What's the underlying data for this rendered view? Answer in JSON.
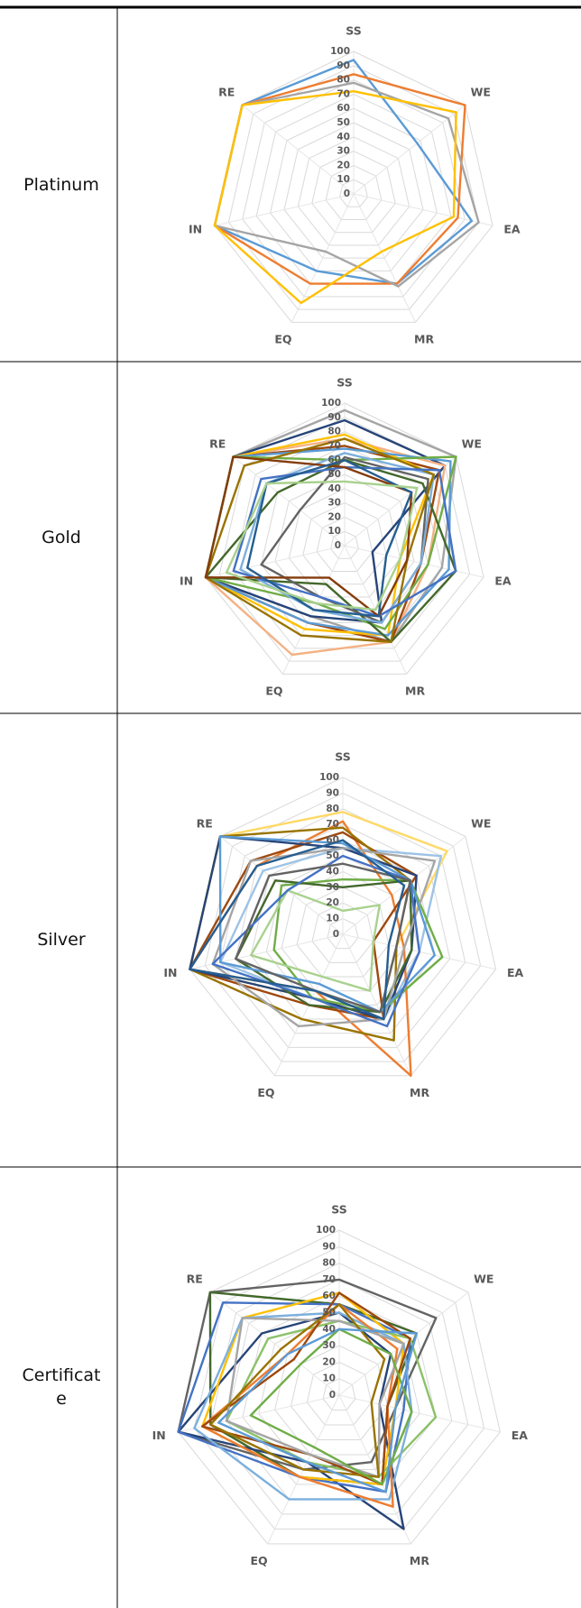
{
  "table": {
    "rows": [
      {
        "label": "Platinum"
      },
      {
        "label": "Gold"
      },
      {
        "label": "Silver"
      },
      {
        "label": "Certificate"
      }
    ]
  },
  "chart_data": [
    {
      "type": "radar",
      "categories": [
        "SS",
        "WE",
        "EA",
        "MR",
        "EQ",
        "IN",
        "RE"
      ],
      "ylim": [
        0,
        100
      ],
      "yticks": [
        0,
        10,
        20,
        30,
        40,
        50,
        60,
        70,
        80,
        90,
        100
      ],
      "grid": true,
      "series": [
        {
          "color": "#5B9BD5",
          "values": [
            94,
            57,
            85,
            70,
            60,
            100,
            100
          ]
        },
        {
          "color": "#ED7D31",
          "values": [
            84,
            100,
            75,
            70,
            70,
            100,
            100
          ]
        },
        {
          "color": "#A5A5A5",
          "values": [
            78,
            85,
            90,
            72,
            45,
            100,
            100
          ]
        },
        {
          "color": "#FFC000",
          "values": [
            72,
            92,
            72,
            45,
            85,
            100,
            100
          ]
        }
      ]
    },
    {
      "type": "radar",
      "categories": [
        "SS",
        "WE",
        "EA",
        "MR",
        "EQ",
        "IN",
        "RE"
      ],
      "ylim": [
        0,
        100
      ],
      "yticks": [
        0,
        10,
        20,
        30,
        40,
        50,
        60,
        70,
        80,
        90,
        100
      ],
      "grid": true,
      "series": [
        {
          "color": "#A5A5A5",
          "values": [
            95,
            100,
            70,
            75,
            55,
            100,
            100
          ]
        },
        {
          "color": "#264478",
          "values": [
            88,
            90,
            20,
            60,
            55,
            100,
            100
          ]
        },
        {
          "color": "#F4B183",
          "values": [
            75,
            90,
            60,
            75,
            85,
            100,
            100
          ]
        },
        {
          "color": "#9E480E",
          "values": [
            70,
            85,
            55,
            75,
            60,
            100,
            100
          ]
        },
        {
          "color": "#FFC000",
          "values": [
            78,
            80,
            40,
            70,
            65,
            100,
            100
          ]
        },
        {
          "color": "#5B9BD5",
          "values": [
            68,
            95,
            75,
            70,
            60,
            100,
            100
          ]
        },
        {
          "color": "#70AD47",
          "values": [
            60,
            100,
            60,
            65,
            45,
            100,
            100
          ]
        },
        {
          "color": "#43682B",
          "values": [
            60,
            70,
            80,
            75,
            30,
            100,
            60
          ]
        },
        {
          "color": "#636363",
          "values": [
            62,
            75,
            55,
            60,
            40,
            60,
            40
          ]
        },
        {
          "color": "#7CAFDD",
          "values": [
            65,
            80,
            55,
            60,
            50,
            75,
            70
          ]
        },
        {
          "color": "#997300",
          "values": [
            75,
            80,
            45,
            75,
            70,
            100,
            90
          ]
        },
        {
          "color": "#4472C4",
          "values": [
            55,
            85,
            80,
            55,
            40,
            80,
            75
          ]
        },
        {
          "color": "#843C0C",
          "values": [
            55,
            60,
            45,
            55,
            25,
            100,
            100
          ]
        },
        {
          "color": "#255E91",
          "values": [
            60,
            60,
            30,
            55,
            50,
            70,
            70
          ]
        },
        {
          "color": "#A9D18E",
          "values": [
            45,
            65,
            40,
            50,
            45,
            85,
            70
          ]
        }
      ]
    },
    {
      "type": "radar",
      "categories": [
        "SS",
        "WE",
        "EA",
        "MR",
        "EQ",
        "IN",
        "RE"
      ],
      "ylim": [
        0,
        100
      ],
      "yticks": [
        0,
        10,
        20,
        30,
        40,
        50,
        60,
        70,
        80,
        90,
        100
      ],
      "grid": true,
      "series": [
        {
          "color": "#FFD966",
          "values": [
            78,
            85,
            35,
            55,
            45,
            100,
            100
          ]
        },
        {
          "color": "#9DC3E6",
          "values": [
            55,
            80,
            50,
            60,
            45,
            80,
            65
          ]
        },
        {
          "color": "#ED7D31",
          "values": [
            72,
            40,
            40,
            100,
            40,
            100,
            70
          ]
        },
        {
          "color": "#9E480E",
          "values": [
            65,
            60,
            20,
            60,
            50,
            100,
            75
          ]
        },
        {
          "color": "#997300",
          "values": [
            68,
            55,
            35,
            75,
            60,
            100,
            100
          ]
        },
        {
          "color": "#264478",
          "values": [
            55,
            60,
            45,
            60,
            45,
            100,
            100
          ]
        },
        {
          "color": "#70AD47",
          "values": [
            35,
            55,
            65,
            55,
            45,
            45,
            50
          ]
        },
        {
          "color": "#A9D18E",
          "values": [
            15,
            30,
            20,
            40,
            30,
            60,
            45
          ]
        },
        {
          "color": "#43682B",
          "values": [
            30,
            55,
            45,
            55,
            50,
            70,
            55
          ]
        },
        {
          "color": "#A5A5A5",
          "values": [
            55,
            75,
            40,
            60,
            65,
            85,
            75
          ]
        },
        {
          "color": "#5B9BD5",
          "values": [
            58,
            55,
            60,
            55,
            35,
            80,
            100
          ]
        },
        {
          "color": "#4472C4",
          "values": [
            50,
            55,
            50,
            65,
            45,
            85,
            45
          ]
        },
        {
          "color": "#636363",
          "values": [
            45,
            55,
            35,
            55,
            40,
            70,
            60
          ]
        },
        {
          "color": "#255E91",
          "values": [
            60,
            50,
            30,
            60,
            40,
            100,
            70
          ]
        }
      ]
    },
    {
      "type": "radar",
      "categories": [
        "SS",
        "WE",
        "EA",
        "MR",
        "EQ",
        "IN",
        "RE"
      ],
      "ylim": [
        0,
        100
      ],
      "yticks": [
        0,
        10,
        20,
        30,
        40,
        50,
        60,
        70,
        80,
        90,
        100
      ],
      "grid": true,
      "series": [
        {
          "color": "#636363",
          "values": [
            70,
            75,
            35,
            45,
            50,
            100,
            100
          ]
        },
        {
          "color": "#43682B",
          "values": [
            55,
            60,
            30,
            60,
            55,
            80,
            100
          ]
        },
        {
          "color": "#264478",
          "values": [
            50,
            40,
            25,
            90,
            45,
            100,
            60
          ]
        },
        {
          "color": "#4472C4",
          "values": [
            55,
            55,
            40,
            65,
            55,
            100,
            90
          ]
        },
        {
          "color": "#FFC000",
          "values": [
            62,
            50,
            35,
            60,
            55,
            85,
            75
          ]
        },
        {
          "color": "#8CC168",
          "values": [
            45,
            55,
            60,
            55,
            45,
            70,
            55
          ]
        },
        {
          "color": "#7CAFDD",
          "values": [
            50,
            50,
            45,
            70,
            70,
            90,
            75
          ]
        },
        {
          "color": "#ED7D31",
          "values": [
            55,
            45,
            30,
            75,
            55,
            85,
            40
          ]
        },
        {
          "color": "#9E480E",
          "values": [
            62,
            55,
            30,
            60,
            40,
            85,
            35
          ]
        },
        {
          "color": "#A5A5A5",
          "values": [
            45,
            50,
            25,
            55,
            40,
            70,
            75
          ]
        },
        {
          "color": "#997300",
          "values": [
            55,
            35,
            20,
            55,
            50,
            80,
            45
          ]
        },
        {
          "color": "#70AD47",
          "values": [
            40,
            40,
            45,
            60,
            35,
            55,
            30
          ]
        },
        {
          "color": "#5B9BD5",
          "values": [
            40,
            60,
            35,
            65,
            45,
            75,
            40
          ]
        }
      ]
    }
  ]
}
